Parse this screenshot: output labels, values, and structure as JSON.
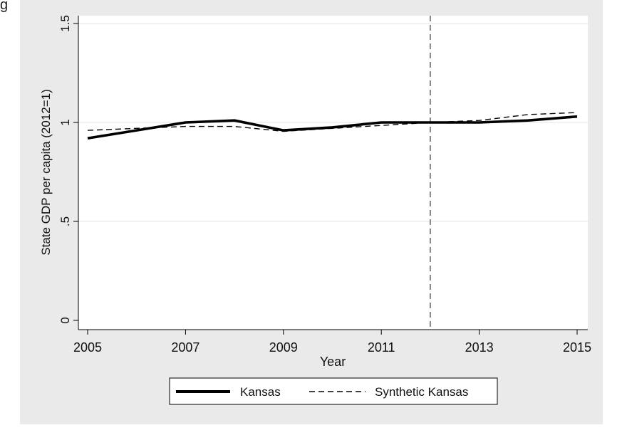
{
  "partial_label": "g",
  "chart_data": {
    "type": "line",
    "title": "",
    "xlabel": "Year",
    "ylabel": "State GDP per capita (2012=1)",
    "xlim": [
      2005,
      2015
    ],
    "ylim": [
      0,
      1.5
    ],
    "x_ticks": [
      2005,
      2007,
      2009,
      2011,
      2013,
      2015
    ],
    "y_ticks": [
      0,
      0.5,
      1,
      1.5
    ],
    "y_tick_labels": [
      "0",
      ".5",
      "1",
      "1.5"
    ],
    "grid": true,
    "reference_line_x": 2012,
    "legend_position": "bottom",
    "x": [
      2005,
      2006,
      2007,
      2008,
      2009,
      2010,
      2011,
      2012,
      2013,
      2014,
      2015
    ],
    "series": [
      {
        "name": "Kansas",
        "style": "solid",
        "values": [
          0.92,
          0.96,
          1.0,
          1.01,
          0.96,
          0.975,
          1.0,
          1.0,
          1.0,
          1.01,
          1.03
        ]
      },
      {
        "name": "Synthetic Kansas",
        "style": "dashed",
        "values": [
          0.96,
          0.97,
          0.98,
          0.98,
          0.955,
          0.97,
          0.985,
          1.0,
          1.01,
          1.04,
          1.05
        ]
      }
    ],
    "colors": {
      "background": "#eaeaea",
      "plot": "#ffffff",
      "line": "#000000",
      "grid": "#e6e6e6"
    }
  }
}
